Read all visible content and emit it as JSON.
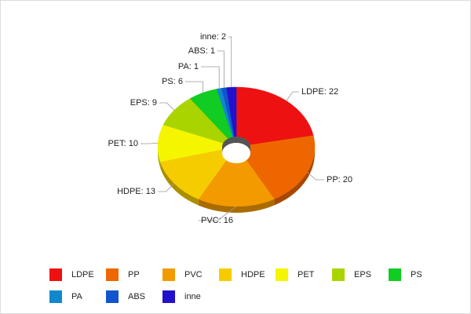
{
  "chart_data": {
    "type": "pie",
    "donut": true,
    "categories": [
      "LDPE",
      "PP",
      "PVC",
      "HDPE",
      "PET",
      "EPS",
      "PS",
      "PA",
      "ABS",
      "inne"
    ],
    "values": [
      22,
      20,
      16,
      13,
      10,
      9,
      6,
      1,
      1,
      2
    ],
    "value_labels": [
      "LDPE: 22",
      "PP: 20",
      "PVC: 16",
      "HDPE: 13",
      "PET: 10",
      "EPS: 9",
      "PS: 6",
      "PA: 1",
      "ABS: 1",
      "inne: 2"
    ],
    "colors": [
      "#ee1111",
      "#ee6600",
      "#f39a00",
      "#f5cc00",
      "#f5f500",
      "#aad400",
      "#11cc22",
      "#1188cc",
      "#1155cc",
      "#2211cc"
    ],
    "legend": "bottom"
  }
}
